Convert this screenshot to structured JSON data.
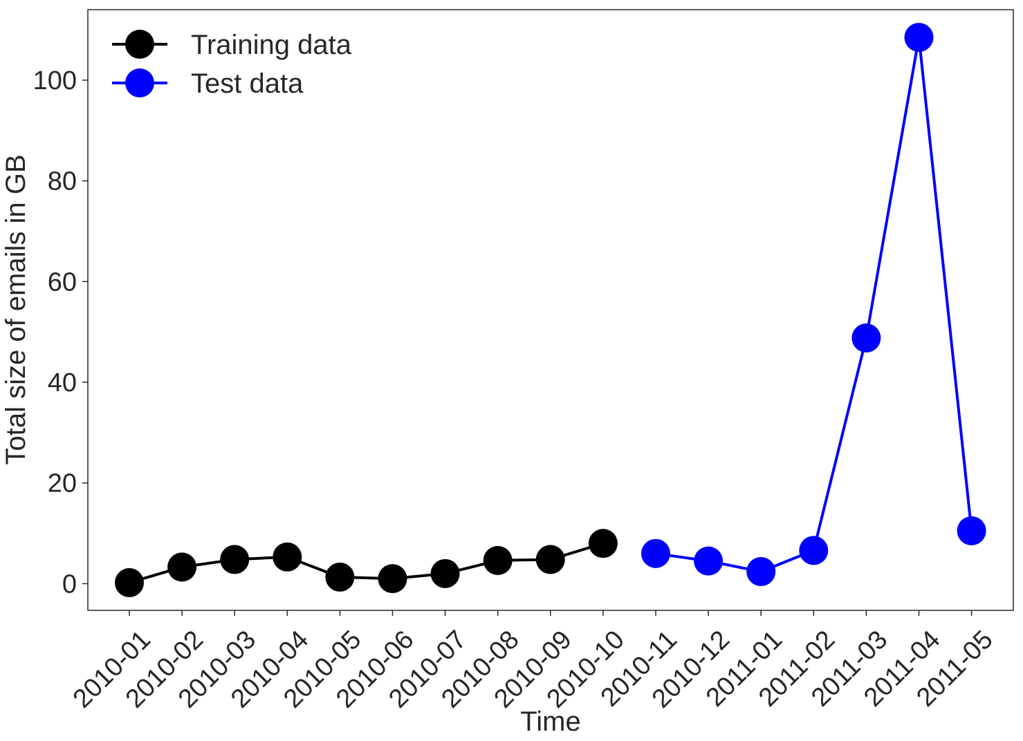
{
  "chart_data": {
    "type": "line",
    "title": "",
    "xlabel": "Time",
    "ylabel": "Total size of emails in GB",
    "categories": [
      "2010-01",
      "2010-02",
      "2010-03",
      "2010-04",
      "2010-05",
      "2010-06",
      "2010-07",
      "2010-08",
      "2010-09",
      "2010-10",
      "2010-11",
      "2010-12",
      "2011-01",
      "2011-02",
      "2011-03",
      "2011-04",
      "2011-05"
    ],
    "ylim": [
      -5.3,
      114
    ],
    "yticks": [
      0,
      20,
      40,
      60,
      80,
      100
    ],
    "grid": false,
    "legend": "top-left",
    "series": [
      {
        "name": "Training data",
        "color": "#000000",
        "x": [
          "2010-01",
          "2010-02",
          "2010-03",
          "2010-04",
          "2010-05",
          "2010-06",
          "2010-07",
          "2010-08",
          "2010-09",
          "2010-10"
        ],
        "values": [
          0.2,
          3.3,
          4.8,
          5.3,
          1.3,
          1.0,
          2.0,
          4.6,
          4.8,
          8.0
        ]
      },
      {
        "name": "Test data",
        "color": "#0000ff",
        "x": [
          "2010-11",
          "2010-12",
          "2011-01",
          "2011-02",
          "2011-03",
          "2011-04",
          "2011-05"
        ],
        "values": [
          6.0,
          4.5,
          2.4,
          6.6,
          48.8,
          108.5,
          10.5
        ]
      }
    ]
  }
}
